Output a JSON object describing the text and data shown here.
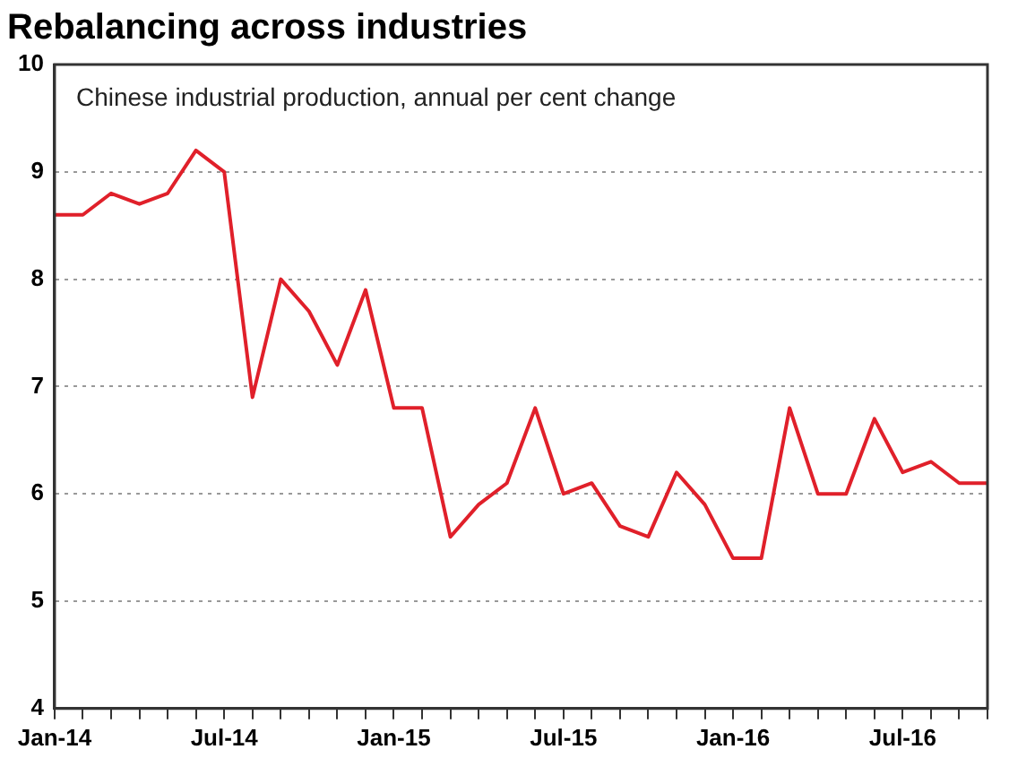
{
  "chart_data": {
    "type": "line",
    "title": "Rebalancing across industries",
    "subtitle": "Chinese industrial production, annual per cent change",
    "categories": [
      "Jan-14",
      null,
      null,
      null,
      null,
      null,
      "Jul-14",
      null,
      null,
      null,
      null,
      null,
      "Jan-15",
      null,
      null,
      null,
      null,
      null,
      "Jul-15",
      null,
      null,
      null,
      null,
      null,
      "Jan-16",
      null,
      null,
      null,
      null,
      null,
      "Jul-16",
      null,
      null,
      null
    ],
    "series": [
      {
        "color": "#e0202a",
        "values": [
          8.6,
          8.6,
          8.8,
          8.7,
          8.8,
          9.2,
          9.0,
          6.9,
          8.0,
          7.7,
          7.2,
          7.9,
          6.8,
          6.8,
          5.6,
          5.9,
          6.1,
          6.8,
          6.0,
          6.1,
          5.7,
          5.6,
          6.2,
          5.9,
          5.4,
          5.4,
          6.8,
          6.0,
          6.0,
          6.7,
          6.2,
          6.3,
          6.1,
          6.1
        ]
      }
    ],
    "ylim": [
      4,
      10
    ],
    "yticks": [
      4,
      5,
      6,
      7,
      8,
      9,
      10
    ],
    "grid": "y",
    "legend": false,
    "marker": "none",
    "line_style": "solid"
  }
}
